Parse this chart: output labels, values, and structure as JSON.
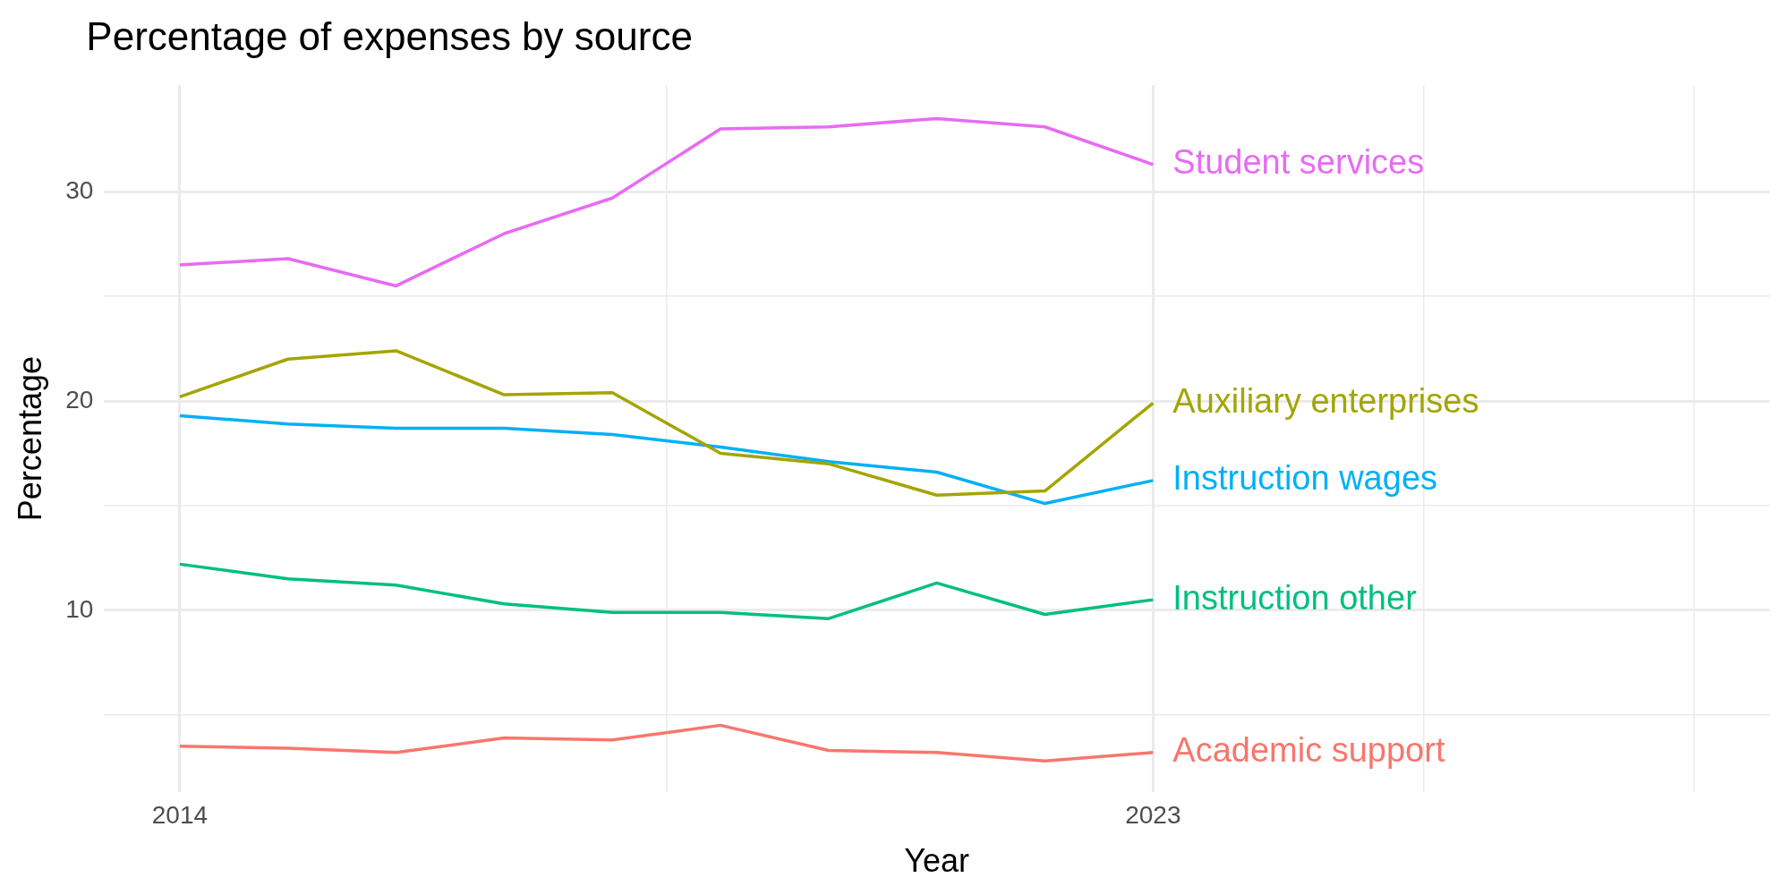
{
  "chart_data": {
    "type": "line",
    "title": "Percentage of expenses by source",
    "xlabel": "Year",
    "ylabel": "Percentage",
    "x": [
      2014,
      2015,
      2016,
      2017,
      2018,
      2019,
      2020,
      2021,
      2022,
      2023
    ],
    "series": [
      {
        "name": "Student services",
        "color": "#e76bf3",
        "values": [
          26.5,
          26.8,
          25.5,
          28.0,
          29.7,
          33.0,
          33.1,
          33.5,
          33.1,
          31.3
        ]
      },
      {
        "name": "Auxiliary enterprises",
        "color": "#a3a500",
        "values": [
          20.2,
          22.0,
          22.4,
          20.3,
          20.4,
          17.5,
          17.0,
          15.5,
          15.7,
          19.9
        ]
      },
      {
        "name": "Instruction wages",
        "color": "#00b0f6",
        "values": [
          19.3,
          18.9,
          18.7,
          18.7,
          18.4,
          17.8,
          17.1,
          16.6,
          15.1,
          16.2
        ]
      },
      {
        "name": "Instruction other",
        "color": "#00bf7d",
        "values": [
          12.2,
          11.5,
          11.2,
          10.3,
          9.9,
          9.9,
          9.6,
          11.3,
          9.8,
          10.5
        ]
      },
      {
        "name": "Academic support",
        "color": "#f8766d",
        "values": [
          3.5,
          3.4,
          3.2,
          3.9,
          3.8,
          4.5,
          3.3,
          3.2,
          2.8,
          3.2
        ]
      }
    ],
    "xlim": [
      2013.3,
      2028.7
    ],
    "xticks": [
      2014,
      {
        "value": 2018.5,
        "label": null
      },
      2023,
      {
        "value": 2025.5,
        "label": null
      },
      {
        "value": 2028,
        "label": null
      }
    ],
    "ylim": [
      1.3,
      35.1
    ],
    "yticks": [
      {
        "value": 5,
        "label": null
      },
      10,
      {
        "value": 15,
        "label": null
      },
      20,
      {
        "value": 25,
        "label": null
      },
      30
    ],
    "grid": true,
    "legend": false,
    "marker": "none",
    "line_style": "solid"
  }
}
